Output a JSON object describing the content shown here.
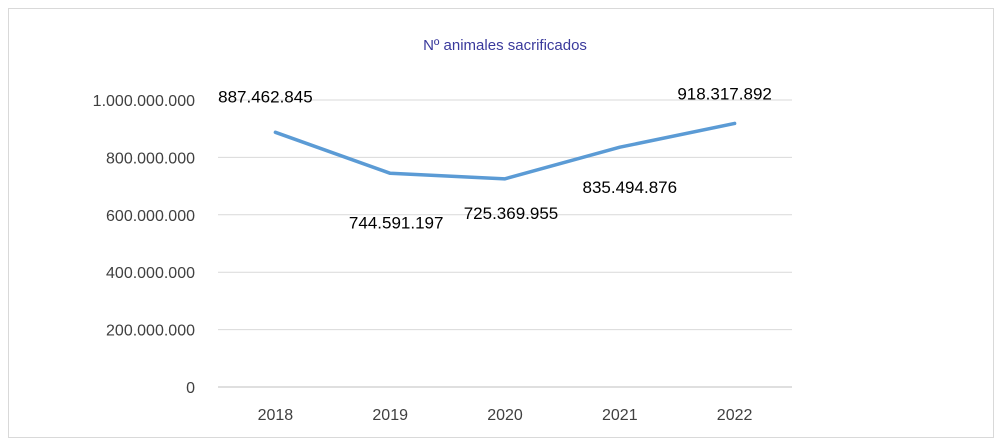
{
  "chart_data": {
    "type": "line",
    "title": "Nº animales sacrificados",
    "categories": [
      "2018",
      "2019",
      "2020",
      "2021",
      "2022"
    ],
    "series": [
      {
        "values": [
          887462845,
          744591197,
          725369955,
          835494876,
          918317892
        ],
        "labels": [
          "887.462.845",
          "744.591.197",
          "725.369.955",
          "835.494.876",
          "918.317.892"
        ],
        "color": "#5b9bd5"
      }
    ],
    "ylim": [
      0,
      1000000000
    ],
    "y_ticks": [
      {
        "value": 0,
        "label": "0"
      },
      {
        "value": 200000000,
        "label": "200.000.000"
      },
      {
        "value": 400000000,
        "label": "400.000.000"
      },
      {
        "value": 600000000,
        "label": "600.000.000"
      },
      {
        "value": 800000000,
        "label": "800.000.000"
      },
      {
        "value": 1000000000,
        "label": "1.000.000.000"
      }
    ],
    "grid": true,
    "legend": "none"
  }
}
